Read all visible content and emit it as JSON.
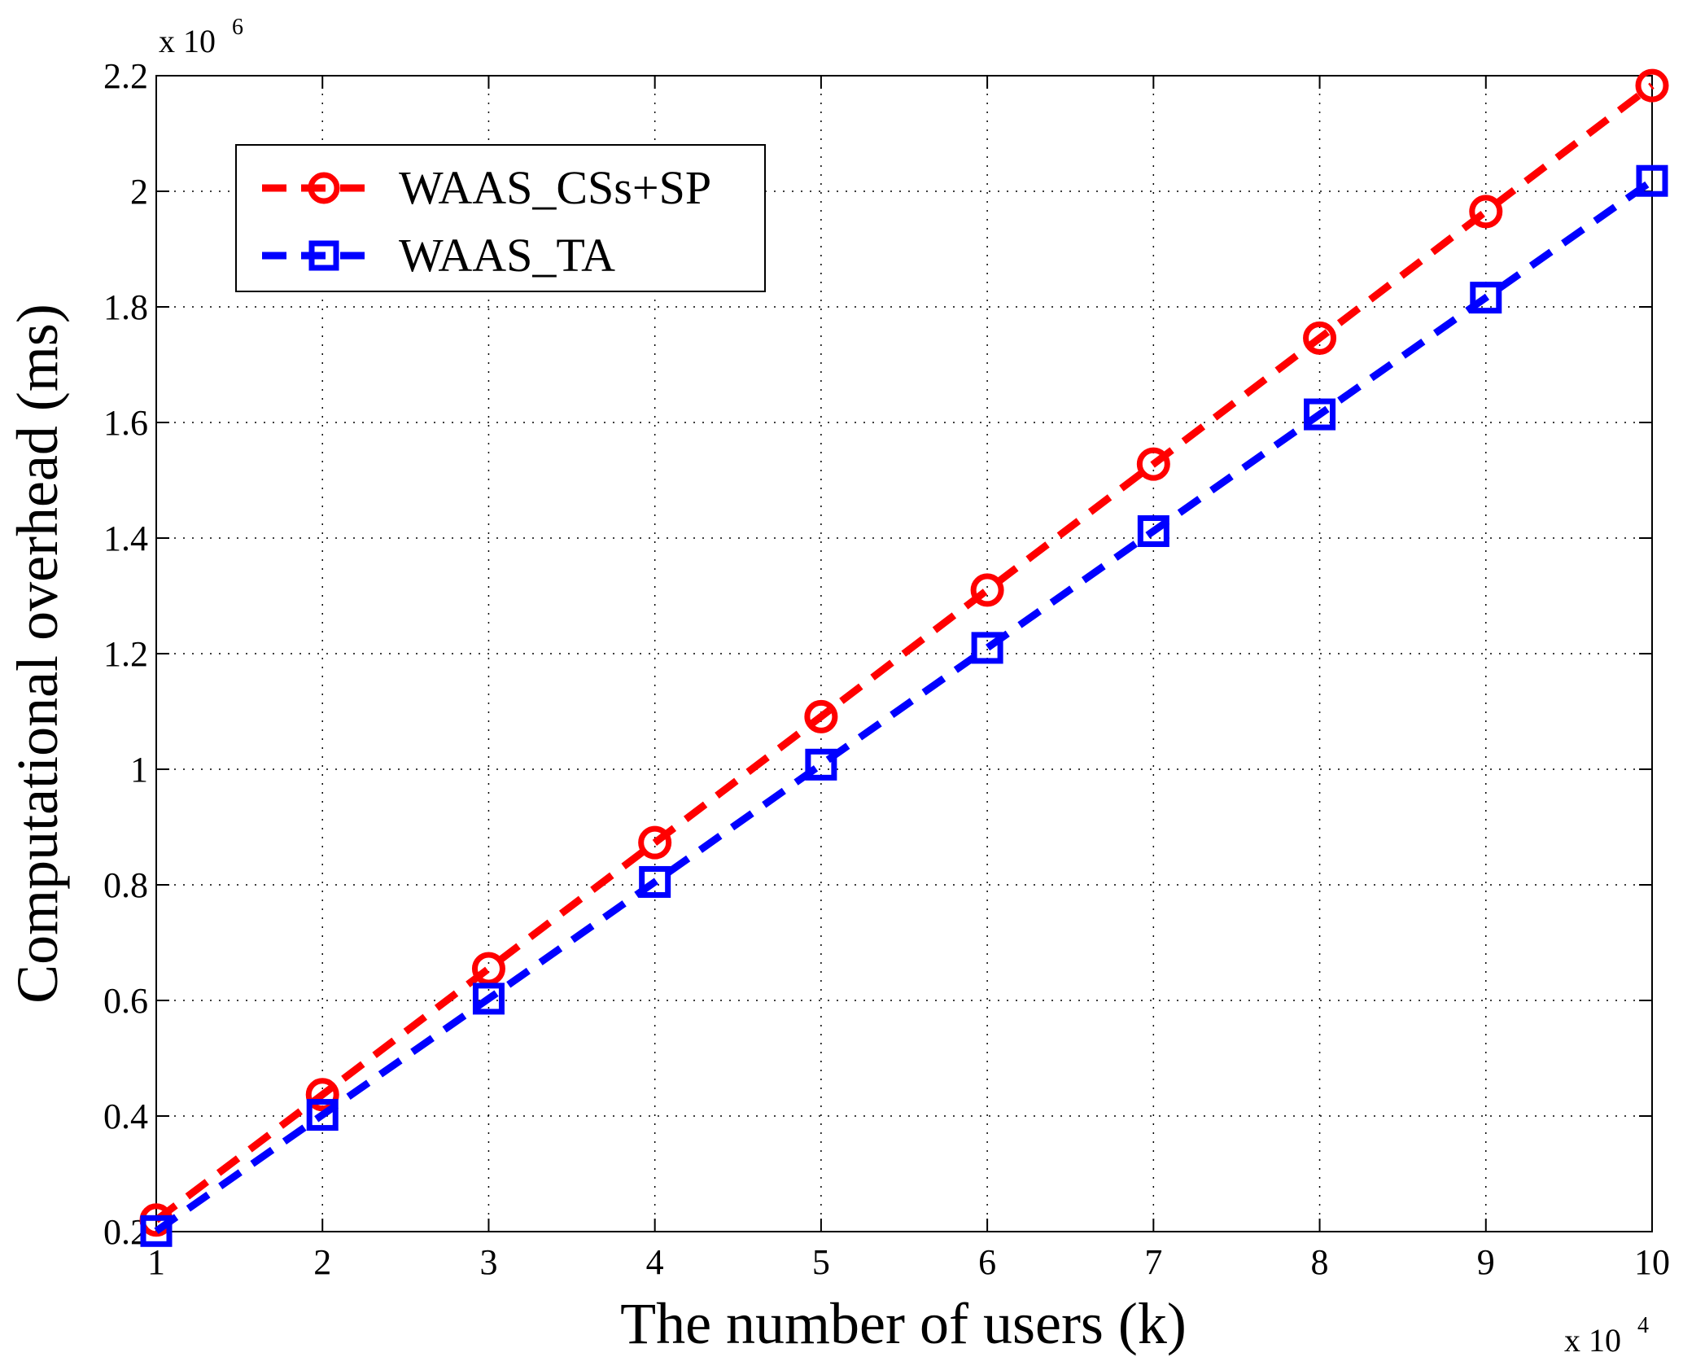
{
  "chart_data": {
    "type": "line",
    "title": "",
    "xlabel": "The number of users (k)",
    "ylabel": "Computational overhead (ms)",
    "x_multiplier_label": "x 10",
    "x_multiplier_exp": "4",
    "y_multiplier_label": "x 10",
    "y_multiplier_exp": "6",
    "x": [
      1,
      2,
      3,
      4,
      5,
      6,
      7,
      8,
      9,
      10
    ],
    "xlim": [
      1,
      10
    ],
    "ylim": [
      0.2,
      2.2
    ],
    "xticks": [
      1,
      2,
      3,
      4,
      5,
      6,
      7,
      8,
      9,
      10
    ],
    "yticks": [
      0.2,
      0.4,
      0.6,
      0.8,
      1.0,
      1.2,
      1.4,
      1.6,
      1.8,
      2.0,
      2.2
    ],
    "ytick_labels": [
      "0.2",
      "0.4",
      "0.6",
      "0.8",
      "1",
      "1.2",
      "1.4",
      "1.6",
      "1.8",
      "2",
      "2.2"
    ],
    "grid": true,
    "legend_position": "top-left",
    "series": [
      {
        "name": "WAAS_CSs+SP",
        "color": "#ff0000",
        "marker": "circle",
        "values": [
          0.22,
          0.437,
          0.655,
          0.873,
          1.091,
          1.31,
          1.528,
          1.746,
          1.965,
          2.183
        ]
      },
      {
        "name": "WAAS_TA",
        "color": "#0000ff",
        "marker": "square",
        "values": [
          0.201,
          0.402,
          0.603,
          0.805,
          1.008,
          1.21,
          1.412,
          1.614,
          1.816,
          2.018
        ]
      }
    ]
  }
}
